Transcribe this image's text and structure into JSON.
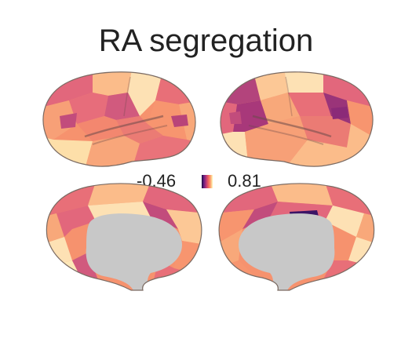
{
  "figure": {
    "title": "RA segregation"
  },
  "colorbar": {
    "min_label": "-0.46",
    "max_label": "0.81",
    "colormap": "magma",
    "colors": [
      "#1b0c41",
      "#6b1d81",
      "#b63679",
      "#f1605d",
      "#fea16e",
      "#fcfdbf"
    ]
  },
  "views": [
    {
      "hemisphere": "left",
      "view": "lateral"
    },
    {
      "hemisphere": "right",
      "view": "lateral"
    },
    {
      "hemisphere": "left",
      "view": "medial"
    },
    {
      "hemisphere": "right",
      "view": "medial"
    }
  ],
  "palette": {
    "medial_wall": "#c8c8c8",
    "outline": "#7a6a62"
  }
}
